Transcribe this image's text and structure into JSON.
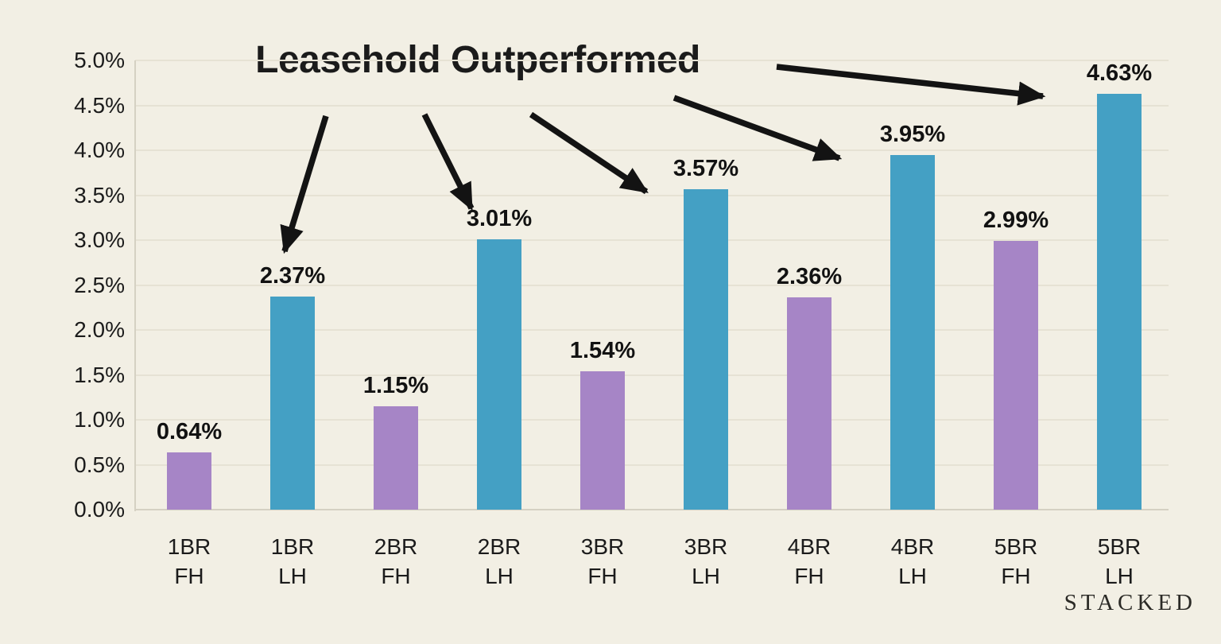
{
  "page": {
    "watermark": "STACKED"
  },
  "colors": {
    "background": "#f2efe4",
    "bar_freehold": "#a685c6",
    "bar_leasehold": "#44a0c4",
    "gridline": "#e6e2d4",
    "axis_line": "#d5d1c3",
    "text": "#1b1b1b",
    "arrow": "#131313",
    "watermark": "#2b2a26"
  },
  "chart_data": {
    "type": "bar",
    "title": "Leasehold Outperformed",
    "categories": [
      "1BR FH",
      "1BR LH",
      "2BR FH",
      "2BR LH",
      "3BR FH",
      "3BR LH",
      "4BR FH",
      "4BR LH",
      "5BR FH",
      "5BR LH"
    ],
    "values": [
      0.64,
      2.37,
      1.15,
      3.01,
      1.54,
      3.57,
      2.36,
      3.95,
      2.99,
      4.63
    ],
    "value_labels": [
      "0.64%",
      "2.37%",
      "1.15%",
      "3.01%",
      "1.54%",
      "3.57%",
      "2.36%",
      "3.95%",
      "2.99%",
      "4.63%"
    ],
    "series": [
      {
        "name": "FH",
        "values": [
          0.64,
          1.15,
          1.54,
          2.36,
          2.99
        ]
      },
      {
        "name": "LH",
        "values": [
          2.37,
          3.01,
          3.57,
          3.95,
          4.63
        ]
      }
    ],
    "xlabel": "",
    "ylabel": "",
    "ylim": [
      0,
      5.0
    ],
    "ytick_step": 0.5,
    "ytick_labels": [
      "0.0%",
      "0.5%",
      "1.0%",
      "1.5%",
      "2.0%",
      "2.5%",
      "3.0%",
      "3.5%",
      "4.0%",
      "4.5%",
      "5.0%"
    ],
    "grid": true,
    "legend": "none",
    "annotation_arrows": [
      {
        "points_to": "1BR LH",
        "from": [
          410,
          146
        ],
        "to": [
          358,
          316
        ]
      },
      {
        "points_to": "2BR LH",
        "from": [
          534,
          144
        ],
        "to": [
          593,
          262
        ]
      },
      {
        "points_to": "3BR LH",
        "from": [
          668,
          144
        ],
        "to": [
          813,
          241
        ]
      },
      {
        "points_to": "4BR LH",
        "from": [
          848,
          123
        ],
        "to": [
          1056,
          199
        ]
      },
      {
        "points_to": "5BR LH",
        "from": [
          977,
          84
        ],
        "to": [
          1312,
          121
        ]
      }
    ]
  }
}
